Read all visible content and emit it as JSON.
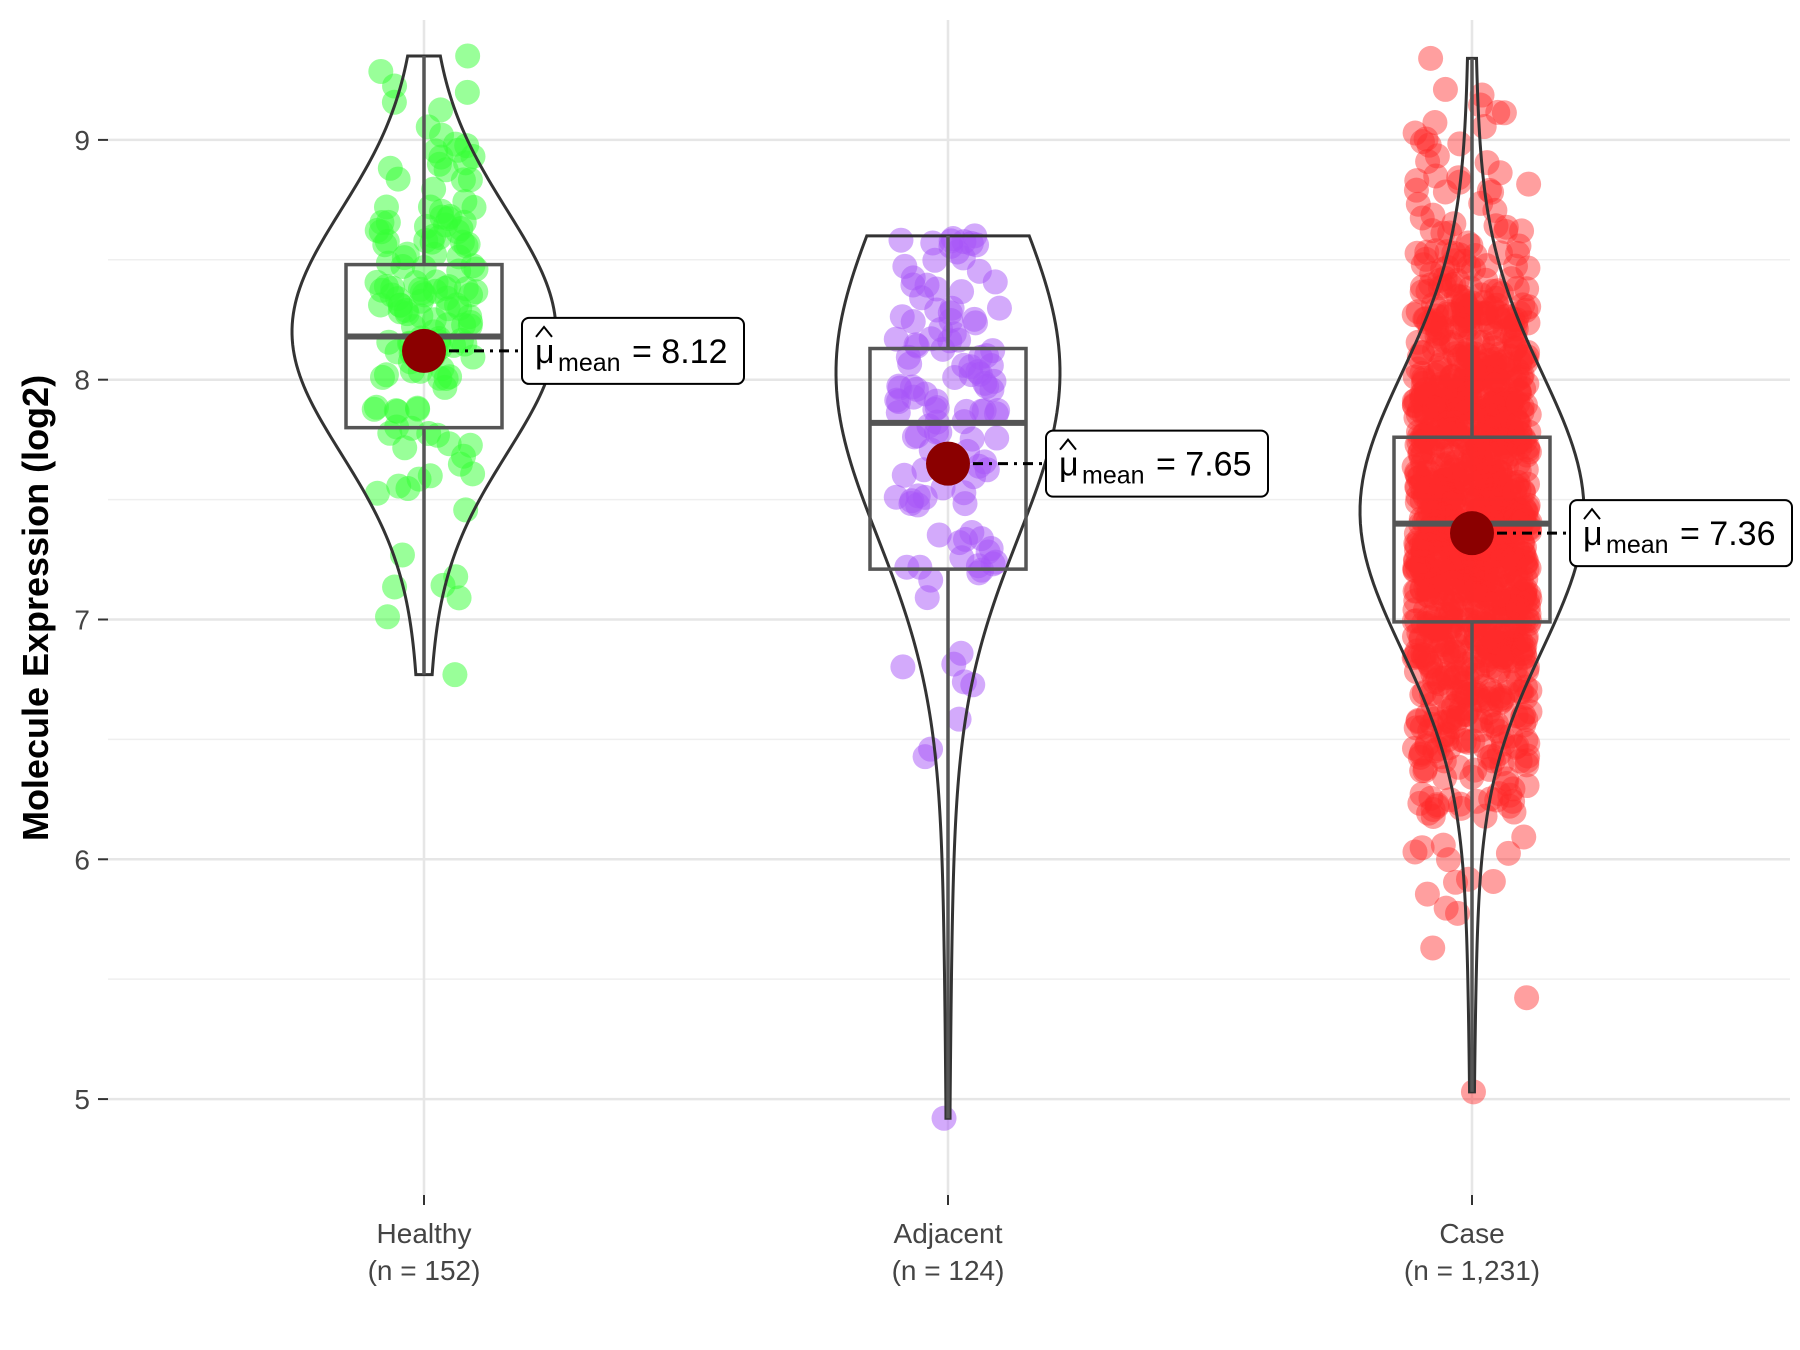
{
  "chart_data": {
    "type": "violin",
    "title": "",
    "xlabel": "",
    "ylabel": "Molecule Expression (log2)",
    "ylim": [
      4.6,
      9.5
    ],
    "yticks": [
      5,
      6,
      7,
      8,
      9
    ],
    "grid": true,
    "legend": "none",
    "mean_label_symbol": "μ",
    "mean_label_subscript": "mean",
    "groups": [
      {
        "name": "Healthy",
        "n_label": "(n = 152)",
        "color": "#33ff33",
        "n_points": 152,
        "min": 6.77,
        "q1": 7.8,
        "median": 8.18,
        "q3": 8.48,
        "max": 9.35,
        "mean": 8.12,
        "mean_label": "8.12",
        "density_peak": 8.2
      },
      {
        "name": "Adjacent",
        "n_label": "(n = 124)",
        "color": "#a855f7",
        "n_points": 124,
        "min": 4.92,
        "q1": 7.21,
        "median": 7.82,
        "q3": 8.13,
        "max": 8.6,
        "mean": 7.65,
        "mean_label": "7.65",
        "density_peak": 8.03
      },
      {
        "name": "Case",
        "n_label": "(n = 1,231)",
        "color": "#ff2a2a",
        "n_points": 1231,
        "min": 5.03,
        "q1": 6.99,
        "median": 7.4,
        "q3": 7.76,
        "max": 9.34,
        "mean": 7.36,
        "mean_label": "7.36",
        "density_peak": 7.45
      }
    ]
  }
}
